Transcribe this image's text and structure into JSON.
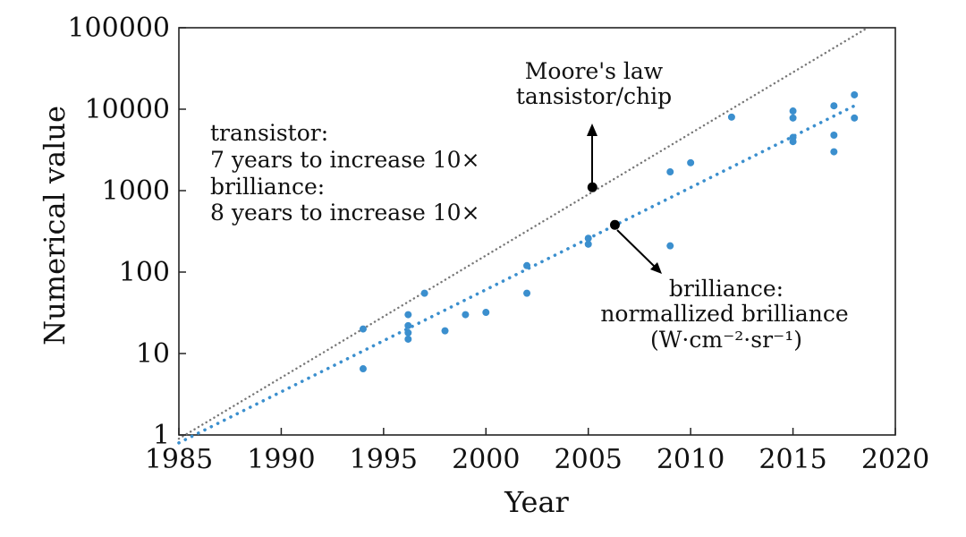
{
  "chart_data": {
    "type": "scatter",
    "xlabel": "Year",
    "ylabel": "Numerical value",
    "xlim": [
      1985,
      2020
    ],
    "ylim": [
      1,
      100000
    ],
    "y_scale": "log",
    "x_ticks": [
      "1985",
      "1990",
      "1995",
      "2000",
      "2005",
      "2010",
      "2015",
      "2020"
    ],
    "y_ticks": [
      "1",
      "10",
      "100",
      "1000",
      "10000",
      "100000"
    ],
    "grid": false,
    "colors": {
      "brilliance": "#3b8fce",
      "moore_line": "#777777",
      "marker": "#000000"
    },
    "series": [
      {
        "style": "scatter",
        "points": [
          {
            "x": 1994,
            "y": 20
          },
          {
            "x": 1994,
            "y": 6.5
          },
          {
            "x": 1996.2,
            "y": 30
          },
          {
            "x": 1996.2,
            "y": 22
          },
          {
            "x": 1996.2,
            "y": 18
          },
          {
            "x": 1996.2,
            "y": 15
          },
          {
            "x": 1997,
            "y": 55
          },
          {
            "x": 1998,
            "y": 19
          },
          {
            "x": 1999,
            "y": 30
          },
          {
            "x": 2000,
            "y": 32
          },
          {
            "x": 2002,
            "y": 120
          },
          {
            "x": 2002,
            "y": 55
          },
          {
            "x": 2005,
            "y": 220
          },
          {
            "x": 2005,
            "y": 260
          },
          {
            "x": 2009,
            "y": 1700
          },
          {
            "x": 2009,
            "y": 210
          },
          {
            "x": 2010,
            "y": 2200
          },
          {
            "x": 2012,
            "y": 8000
          },
          {
            "x": 2015,
            "y": 9500
          },
          {
            "x": 2015,
            "y": 7800
          },
          {
            "x": 2015,
            "y": 4500
          },
          {
            "x": 2015,
            "y": 4000
          },
          {
            "x": 2017,
            "y": 11000
          },
          {
            "x": 2017,
            "y": 4800
          },
          {
            "x": 2017,
            "y": 3000
          },
          {
            "x": 2018,
            "y": 15000
          },
          {
            "x": 2018,
            "y": 7800
          }
        ]
      },
      {
        "style": "dotted-line",
        "x": [
          1985,
          2018
        ],
        "y": [
          0.8,
          11000
        ]
      },
      {
        "style": "dotted-line",
        "x": [
          1985,
          2018.5
        ],
        "y": [
          0.9,
          95000
        ]
      }
    ],
    "annotations": [
      {
        "lines": [
          "Moore's law",
          "tansistor/chip"
        ],
        "marker": {
          "x": 2005.2,
          "y": 1100
        }
      },
      {
        "lines": [
          "transistor:",
          "7 years to increase 10×",
          "brilliance:",
          "8 years to increase 10×"
        ]
      },
      {
        "lines": [
          "brilliance:",
          "normallized brilliance",
          "(W·cm⁻²·sr⁻¹)"
        ],
        "marker": {
          "x": 2006.3,
          "y": 380
        }
      }
    ]
  }
}
